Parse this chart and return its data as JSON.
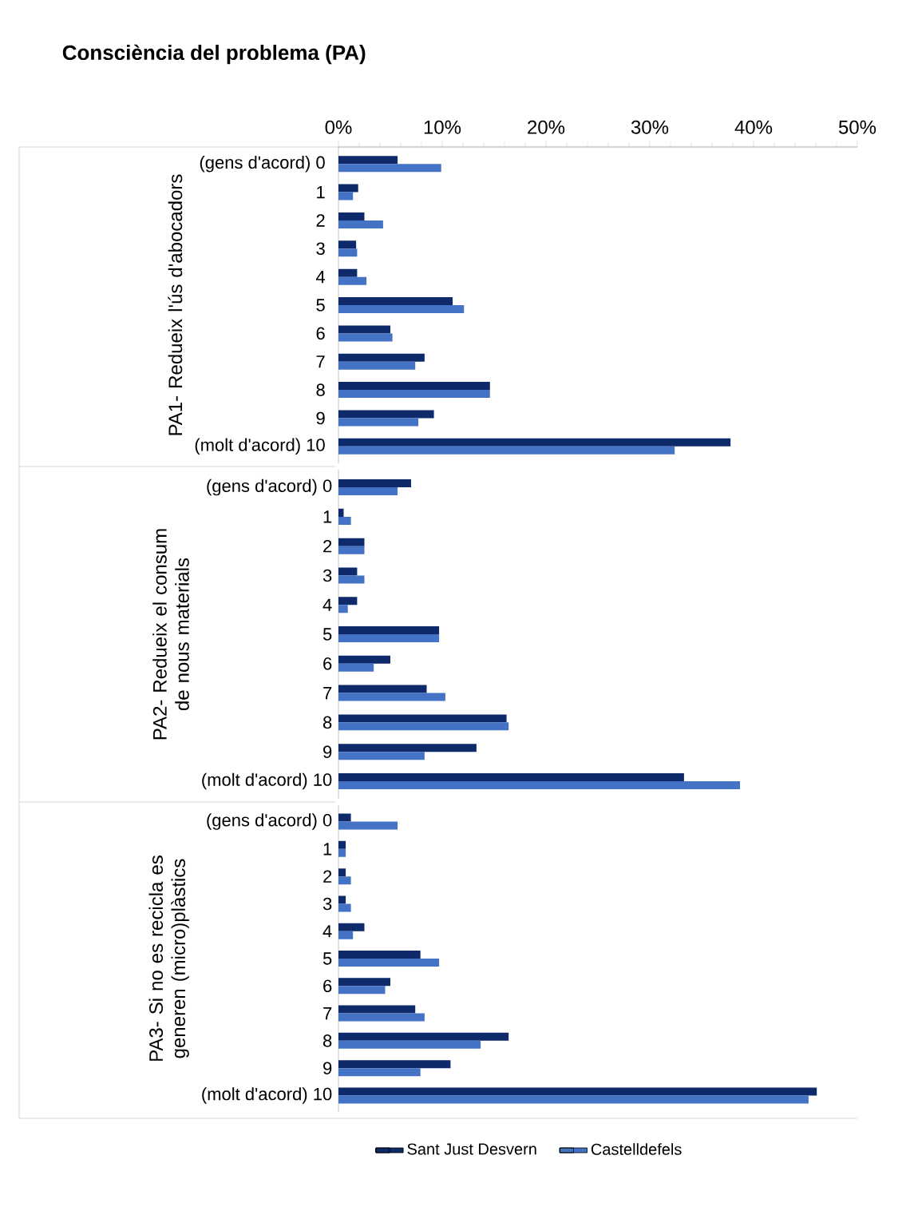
{
  "chart_data": [
    {
      "type": "bar",
      "orientation": "horizontal",
      "title": "Consciència del problema (PA)",
      "ylabel": "PA1- Redueix l'ús d'abocadors",
      "categories": [
        "(gens d'acord) 0",
        "1",
        "2",
        "3",
        "4",
        "5",
        "6",
        "7",
        "8",
        "9",
        "(molt d'acord) 10"
      ],
      "series": [
        {
          "color": "#0e2a6b",
          "values": [
            5.7,
            1.9,
            2.5,
            1.7,
            1.8,
            11.0,
            5.0,
            8.3,
            14.6,
            9.2,
            37.8
          ]
        },
        {
          "color": "#4472c4",
          "values": [
            9.9,
            1.4,
            4.3,
            1.8,
            2.7,
            12.1,
            5.2,
            7.4,
            14.6,
            7.7,
            32.4
          ]
        }
      ],
      "xlim": [
        0,
        50
      ],
      "xticks": [
        {
          "value": 0,
          "label": "0%"
        },
        {
          "value": 10,
          "label": "10%"
        },
        {
          "value": 20,
          "label": "20%"
        },
        {
          "value": 30,
          "label": "30%"
        },
        {
          "value": 40,
          "label": "40%"
        },
        {
          "value": 50,
          "label": "50%"
        }
      ]
    },
    {
      "type": "bar",
      "orientation": "horizontal",
      "ylabel": "PA2- Redueix el consum de nous materials",
      "categories": [
        "(gens d'acord) 0",
        "1",
        "2",
        "3",
        "4",
        "5",
        "6",
        "7",
        "8",
        "9",
        "(molt d'acord) 10"
      ],
      "series": [
        {
          "color": "#0e2a6b",
          "values": [
            7.0,
            0.5,
            2.5,
            1.8,
            1.8,
            9.7,
            5.0,
            8.5,
            16.2,
            13.3,
            33.3
          ]
        },
        {
          "color": "#4472c4",
          "values": [
            5.7,
            1.2,
            2.5,
            2.5,
            0.9,
            9.7,
            3.4,
            10.3,
            16.4,
            8.3,
            38.7
          ]
        }
      ],
      "xlim": [
        0,
        50
      ],
      "tick_labels": "y"
    },
    {
      "type": "bar",
      "orientation": "horizontal",
      "ylabel": "PA3- Si no es recicla es generen (micro)plàstics",
      "categories": [
        "(gens d'acord) 0",
        "1",
        "2",
        "3",
        "4",
        "5",
        "6",
        "7",
        "8",
        "9",
        "(molt d'acord) 10"
      ],
      "series": [
        {
          "name": "Sant Just Desvern",
          "color": "#0e2a6b",
          "values": [
            1.2,
            0.7,
            0.7,
            0.7,
            2.5,
            7.9,
            5.0,
            7.4,
            16.4,
            10.8,
            46.1
          ]
        },
        {
          "name": "Castelldefels",
          "color": "#4472c4",
          "values": [
            5.7,
            0.7,
            1.2,
            1.2,
            1.4,
            9.7,
            4.5,
            8.3,
            13.7,
            7.9,
            45.3
          ]
        }
      ],
      "xlim": [
        0,
        50
      ],
      "tick_labels": "y",
      "legend": "bottom"
    }
  ]
}
